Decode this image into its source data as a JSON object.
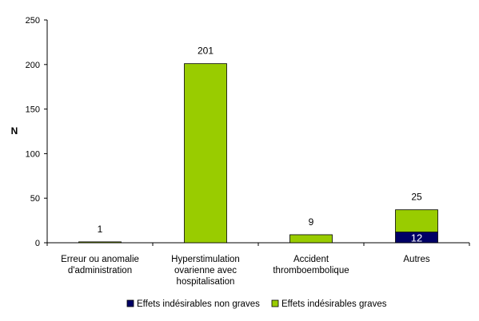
{
  "chart_data": {
    "type": "bar",
    "stacked": true,
    "title": "",
    "xlabel": "",
    "ylabel": "N",
    "ylim": [
      0,
      250
    ],
    "yticks": [
      "0",
      "50",
      "100",
      "150",
      "200",
      "250"
    ],
    "categories": [
      [
        "Erreur ou anomalie",
        "d'administration"
      ],
      [
        "Hyperstimulation",
        "ovarienne avec",
        "hospitalisation"
      ],
      [
        "Accident",
        "thromboembolique"
      ],
      [
        "Autres"
      ]
    ],
    "series": [
      {
        "name": "Effets indésirables non graves",
        "color": "#000066",
        "values": [
          0,
          0,
          0,
          12
        ]
      },
      {
        "name": "Effets indésirables graves",
        "color": "#99cc00",
        "values": [
          1,
          201,
          9,
          25
        ]
      }
    ],
    "data_labels": {
      "top": [
        "1",
        "201",
        "9",
        "25"
      ],
      "inside_non_graves": [
        "",
        "",
        "",
        "12"
      ]
    },
    "grid": false,
    "legend_position": "bottom"
  }
}
